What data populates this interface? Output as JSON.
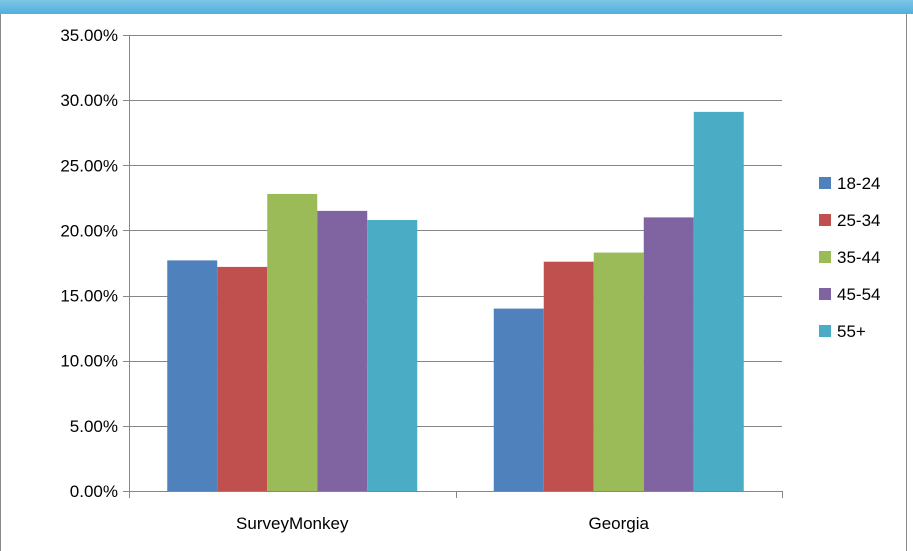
{
  "chart_data": {
    "type": "bar",
    "categories": [
      "SurveyMonkey",
      "Georgia"
    ],
    "series": [
      {
        "name": "18-24",
        "color": "#4f81bd",
        "values": [
          17.7,
          14.0
        ]
      },
      {
        "name": "25-34",
        "color": "#c0504d",
        "values": [
          17.2,
          17.6
        ]
      },
      {
        "name": "35-44",
        "color": "#9bbb59",
        "values": [
          22.8,
          18.3
        ]
      },
      {
        "name": "45-54",
        "color": "#8064a2",
        "values": [
          21.5,
          21.0
        ]
      },
      {
        "name": "55+",
        "color": "#4bacc6",
        "values": [
          20.8,
          29.1
        ]
      }
    ],
    "ylim": [
      0,
      35
    ],
    "y_ticks": [
      0,
      5,
      10,
      15,
      20,
      25,
      30,
      35
    ],
    "y_tick_labels": [
      "0.00%",
      "5.00%",
      "10.00%",
      "15.00%",
      "20.00%",
      "25.00%",
      "30.00%",
      "35.00%"
    ],
    "grid": true,
    "legend_position": "right",
    "title": "",
    "xlabel": "",
    "ylabel": ""
  }
}
